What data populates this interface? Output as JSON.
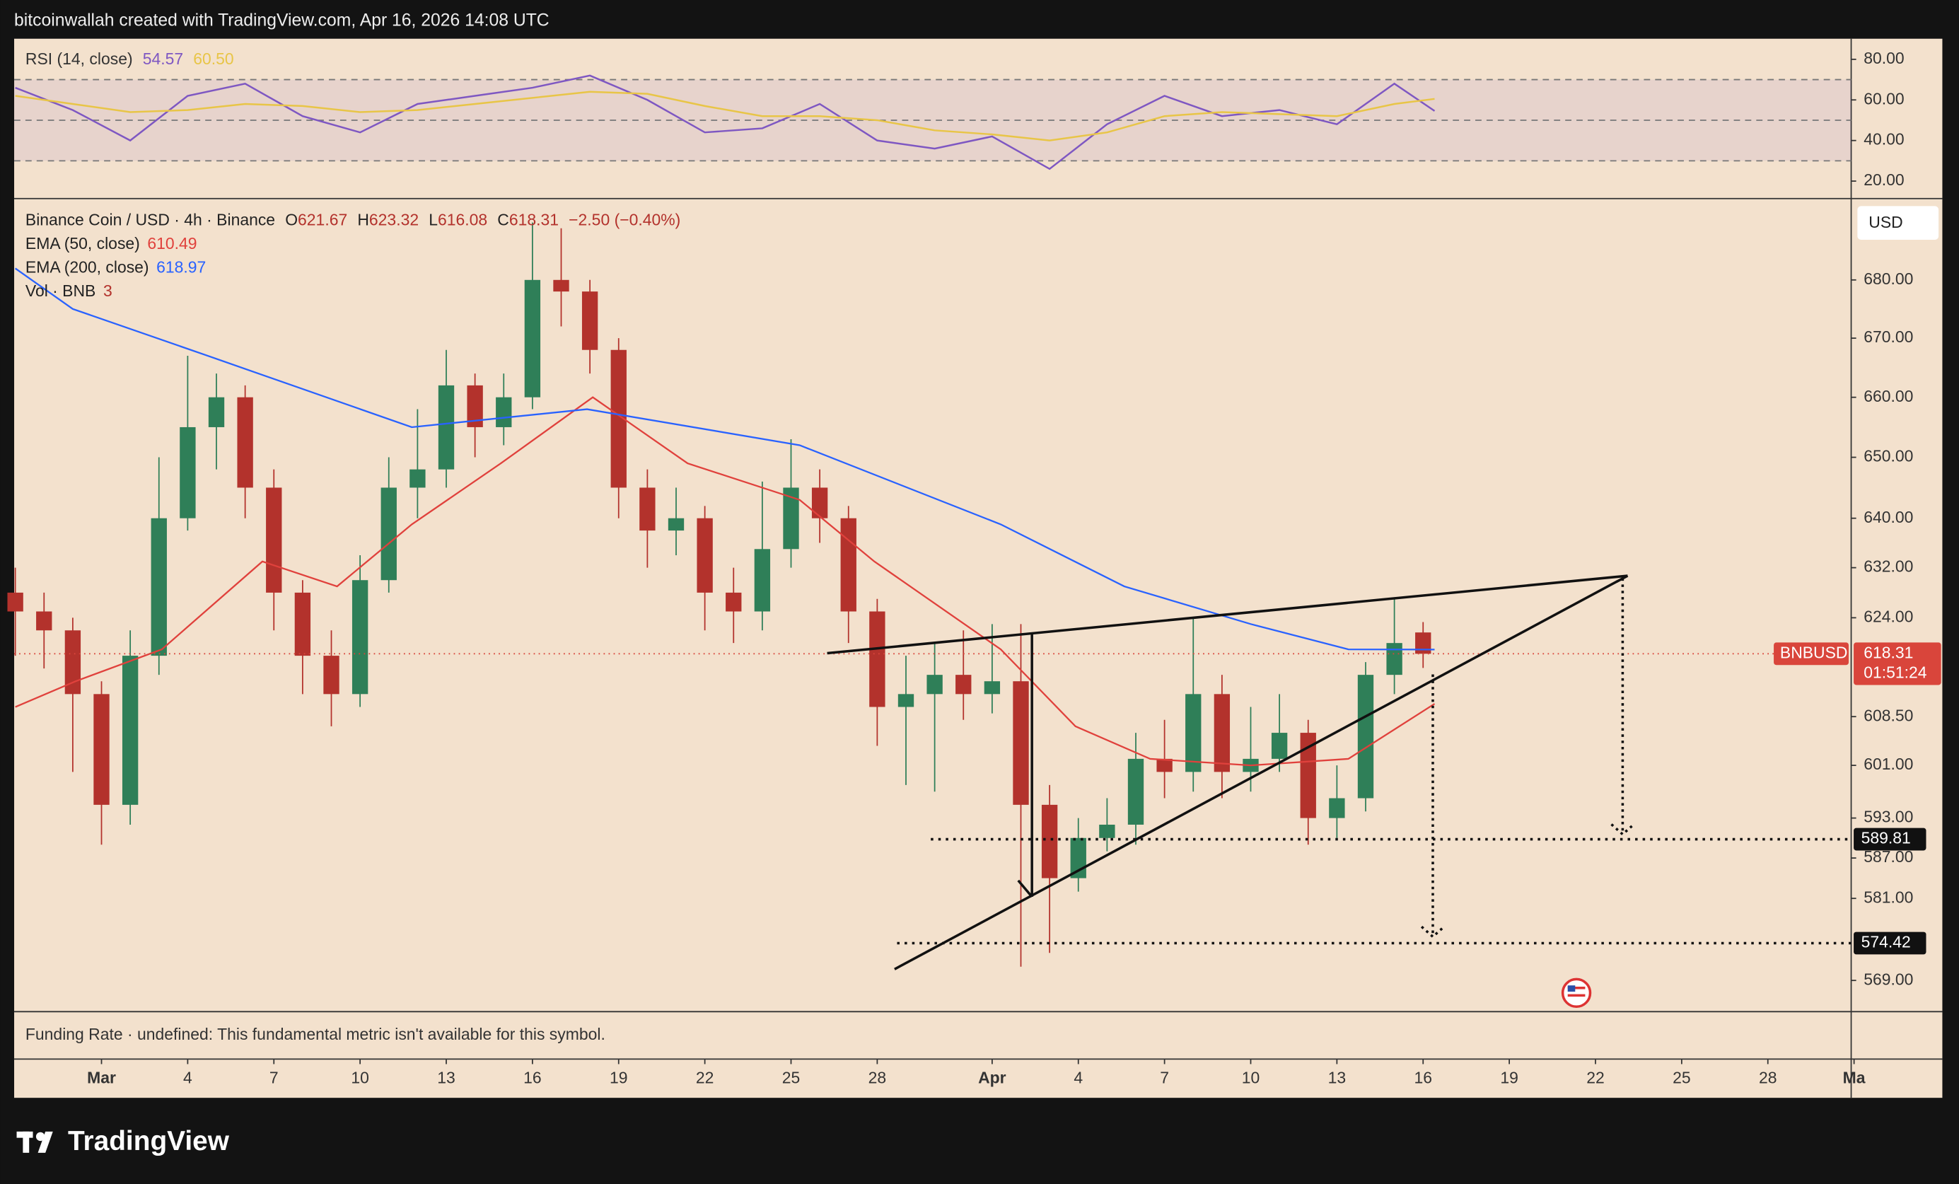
{
  "header": {
    "text": "bitcoinwallah created with TradingView.com, Apr 16, 2026 14:08 UTC"
  },
  "chart_data": [
    {
      "type": "line",
      "title": "RSI (14, close)",
      "xlim": [
        -3.04,
        60.9
      ],
      "ylim": [
        12,
        90.15
      ],
      "yticks": [
        {
          "value": 80,
          "label": "80.00"
        },
        {
          "value": 60,
          "label": "60.00"
        },
        {
          "value": 40,
          "label": "40.00"
        },
        {
          "value": 20,
          "label": "20.00"
        }
      ],
      "bands": [
        70,
        50,
        30
      ],
      "series": [
        {
          "name": "RSI",
          "color": "#7e57c2",
          "legend_value": 54.57,
          "x": [
            -3,
            -1,
            1,
            3,
            5,
            7,
            9,
            11,
            13,
            15,
            17,
            19,
            21,
            23,
            25,
            27,
            29,
            31,
            33,
            35,
            37,
            39,
            41,
            43,
            45,
            46.4
          ],
          "values": [
            66,
            55,
            40,
            62,
            68,
            52,
            44,
            58,
            62,
            66,
            72,
            60,
            44,
            46,
            58,
            40,
            36,
            42,
            26,
            48,
            62,
            52,
            55,
            48,
            68,
            54.57
          ]
        },
        {
          "name": "RSI MA",
          "color": "#e8c547",
          "legend_value": {
            "value": 60.5,
            "label": "60.50"
          },
          "x": [
            -3,
            -1,
            1,
            3,
            5,
            7,
            9,
            11,
            13,
            15,
            17,
            19,
            21,
            23,
            25,
            27,
            29,
            31,
            33,
            35,
            37,
            39,
            41,
            43,
            45,
            46.4
          ],
          "values": [
            62,
            58,
            54,
            55,
            58,
            57,
            54,
            55,
            58,
            61,
            64,
            63,
            57,
            52,
            52,
            50,
            45,
            43,
            40,
            44,
            52,
            54,
            53,
            52,
            58,
            60.5
          ]
        }
      ]
    },
    {
      "type": "candlestick",
      "title": "Binance Coin / USD · 4h · Binance",
      "ohlc": [
        {
          "label": "O",
          "value": 621.67
        },
        {
          "label": "H",
          "value": 623.32
        },
        {
          "label": "L",
          "value": 616.08
        },
        {
          "label": "C",
          "value": 618.31
        }
      ],
      "change": {
        "value": -2.5,
        "label": "−2.50 (−0.40%)"
      },
      "volume_legend": {
        "name": "Vol · BNB",
        "value": 3
      },
      "currency": "USD",
      "log_scale": true,
      "up_color": "#2f7f58",
      "down_color": "#b3322c",
      "xlim": [
        -3.04,
        60.9
      ],
      "ylim": [
        564.5,
        694
      ],
      "xticks": [
        {
          "value": 0,
          "label": "Mar"
        },
        {
          "value": 3,
          "label": "4"
        },
        {
          "value": 6,
          "label": "7"
        },
        {
          "value": 9,
          "label": "10"
        },
        {
          "value": 12,
          "label": "13"
        },
        {
          "value": 15,
          "label": "16"
        },
        {
          "value": 18,
          "label": "19"
        },
        {
          "value": 21,
          "label": "22"
        },
        {
          "value": 24,
          "label": "25"
        },
        {
          "value": 27,
          "label": "28"
        },
        {
          "value": 31,
          "label": "Apr"
        },
        {
          "value": 34,
          "label": "4"
        },
        {
          "value": 37,
          "label": "7"
        },
        {
          "value": 40,
          "label": "10"
        },
        {
          "value": 43,
          "label": "13"
        },
        {
          "value": 46,
          "label": "16"
        },
        {
          "value": 49,
          "label": "19"
        },
        {
          "value": 52,
          "label": "22"
        },
        {
          "value": 55,
          "label": "25"
        },
        {
          "value": 58,
          "label": "28"
        },
        {
          "value": 61,
          "label": "Ma"
        }
      ],
      "yticks": [
        {
          "value": 680,
          "label": "680.00"
        },
        {
          "value": 670,
          "label": "670.00"
        },
        {
          "value": 660,
          "label": "660.00"
        },
        {
          "value": 650,
          "label": "650.00"
        },
        {
          "value": 640,
          "label": "640.00"
        },
        {
          "value": 632,
          "label": "632.00"
        },
        {
          "value": 624,
          "label": "624.00"
        },
        {
          "value": 608.5,
          "label": "608.50"
        },
        {
          "value": 601,
          "label": "601.00"
        },
        {
          "value": 593,
          "label": "593.00"
        },
        {
          "value": 587,
          "label": "587.00"
        },
        {
          "value": 581,
          "label": "581.00"
        },
        {
          "value": 569,
          "label": "569.00"
        }
      ],
      "x": [
        -3,
        -2,
        -1,
        0,
        1,
        2,
        3,
        4,
        5,
        6,
        7,
        8,
        9,
        10,
        11,
        12,
        13,
        14,
        15,
        16,
        17,
        18,
        19,
        20,
        21,
        22,
        23,
        24,
        25,
        26,
        27,
        28,
        29,
        30,
        31,
        32,
        33,
        34,
        35,
        36,
        37,
        38,
        39,
        40,
        41,
        42,
        43,
        44,
        45,
        46
      ],
      "open": [
        628,
        625,
        622,
        612,
        595,
        618,
        640,
        655,
        660,
        645,
        628,
        618,
        612,
        630,
        645,
        648,
        662,
        655,
        660,
        680,
        678,
        668,
        645,
        638,
        640,
        628,
        625,
        635,
        645,
        640,
        625,
        610,
        612,
        615,
        612,
        614,
        595,
        584,
        590,
        592,
        602,
        600,
        612,
        600,
        602,
        606,
        593,
        596,
        615,
        621.67
      ],
      "high": [
        632,
        628,
        624,
        614,
        622,
        650,
        667,
        664,
        662,
        648,
        630,
        622,
        634,
        650,
        658,
        668,
        664,
        664,
        690,
        689,
        680,
        670,
        648,
        645,
        642,
        632,
        646,
        653,
        648,
        642,
        627,
        618,
        620,
        622,
        623,
        623,
        598,
        593,
        596,
        606,
        608,
        624,
        615,
        610,
        612,
        608,
        601,
        617,
        627,
        623.32
      ],
      "low": [
        618,
        616,
        600,
        589,
        592,
        615,
        638,
        648,
        640,
        622,
        612,
        607,
        610,
        628,
        640,
        645,
        650,
        652,
        658,
        672,
        664,
        640,
        632,
        634,
        622,
        620,
        622,
        632,
        636,
        620,
        604,
        598,
        597,
        608,
        609,
        571,
        573,
        582,
        588,
        589,
        596,
        597,
        596,
        597,
        600,
        589,
        590,
        594,
        612,
        616.08
      ],
      "close": [
        625,
        622,
        612,
        595,
        618,
        640,
        655,
        660,
        645,
        628,
        618,
        612,
        630,
        645,
        648,
        662,
        655,
        660,
        680,
        678,
        668,
        645,
        638,
        640,
        628,
        625,
        635,
        645,
        640,
        625,
        610,
        612,
        615,
        612,
        614,
        595,
        584,
        590,
        592,
        602,
        600,
        612,
        600,
        602,
        606,
        593,
        596,
        615,
        620,
        618.31
      ],
      "series": [
        {
          "name": "EMA (50, close)",
          "color": "#e0413c",
          "legend_value": 610.49,
          "x": [
            -3,
            -0.9,
            2.1,
            5.6,
            8.2,
            10.8,
            13.9,
            17.1,
            20.4,
            24.3,
            26.9,
            31.3,
            33.9,
            36.5,
            40,
            43.4,
            46.4
          ],
          "values": [
            610,
            614,
            619,
            633,
            629,
            639,
            649,
            660,
            649,
            643,
            633,
            619,
            607,
            602,
            601,
            602,
            610.49
          ]
        },
        {
          "name": "EMA (200, close)",
          "color": "#2962ff",
          "legend_value": 618.97,
          "x": [
            -3,
            -1,
            3.7,
            10.8,
            16.9,
            24.3,
            31.3,
            35.6,
            40,
            43.4,
            46.4
          ],
          "values": [
            682,
            675,
            667,
            655,
            658,
            652,
            639,
            629,
            623,
            619,
            618.97
          ]
        }
      ],
      "last_price": {
        "symbol": "BNBUSD",
        "value": 618.31,
        "countdown": "01:51:24",
        "color": "#d9453b"
      },
      "levels": [
        589.81,
        574.42
      ]
    }
  ],
  "funding": {
    "text": "Funding Rate · undefined: This fundamental metric isn't available for this symbol."
  },
  "footer": {
    "logo": "TradingView"
  }
}
